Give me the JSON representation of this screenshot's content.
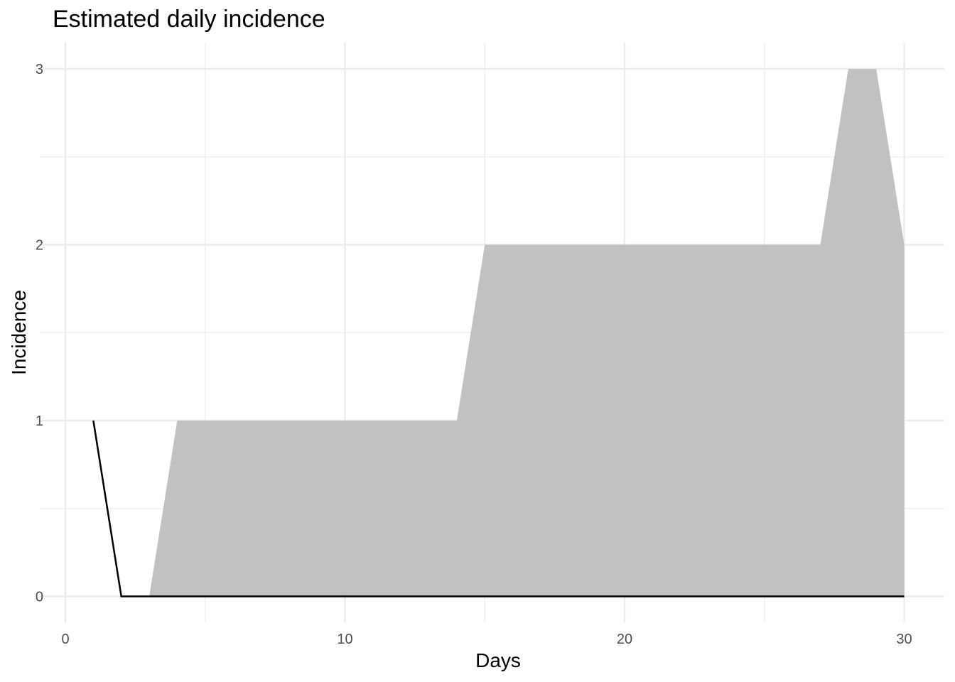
{
  "chart_data": {
    "type": "area",
    "title": "Estimated daily incidence",
    "xlabel": "Days",
    "ylabel": "Incidence",
    "xlim": [
      0,
      30
    ],
    "ylim": [
      0,
      3
    ],
    "x_ticks": [
      0,
      10,
      20,
      30
    ],
    "y_ticks": [
      0,
      1,
      2,
      3
    ],
    "grid": true,
    "legend": "none",
    "line": {
      "color": "#000000",
      "x": [
        1,
        2,
        3,
        4,
        5,
        6,
        7,
        8,
        9,
        10,
        11,
        12,
        13,
        14,
        15,
        16,
        17,
        18,
        19,
        20,
        21,
        22,
        23,
        24,
        25,
        26,
        27,
        28,
        29,
        30
      ],
      "y": [
        1,
        0,
        0,
        0,
        0,
        0,
        0,
        0,
        0,
        0,
        0,
        0,
        0,
        0,
        0,
        0,
        0,
        0,
        0,
        0,
        0,
        0,
        0,
        0,
        0,
        0,
        0,
        0,
        0,
        0
      ]
    },
    "ribbon": {
      "color": "#bebebe",
      "x": [
        1,
        2,
        3,
        4,
        5,
        6,
        7,
        8,
        9,
        10,
        11,
        12,
        13,
        14,
        15,
        16,
        17,
        18,
        19,
        20,
        21,
        22,
        23,
        24,
        25,
        26,
        27,
        28,
        29,
        30
      ],
      "lower": [
        1,
        0,
        0,
        0,
        0,
        0,
        0,
        0,
        0,
        0,
        0,
        0,
        0,
        0,
        0,
        0,
        0,
        0,
        0,
        0,
        0,
        0,
        0,
        0,
        0,
        0,
        0,
        0,
        0,
        0
      ],
      "upper": [
        1,
        0,
        0,
        1,
        1,
        1,
        1,
        1,
        1,
        1,
        1,
        1,
        1,
        1,
        2,
        2,
        2,
        2,
        2,
        2,
        2,
        2,
        2,
        2,
        2,
        2,
        2,
        3,
        3,
        2
      ]
    }
  }
}
